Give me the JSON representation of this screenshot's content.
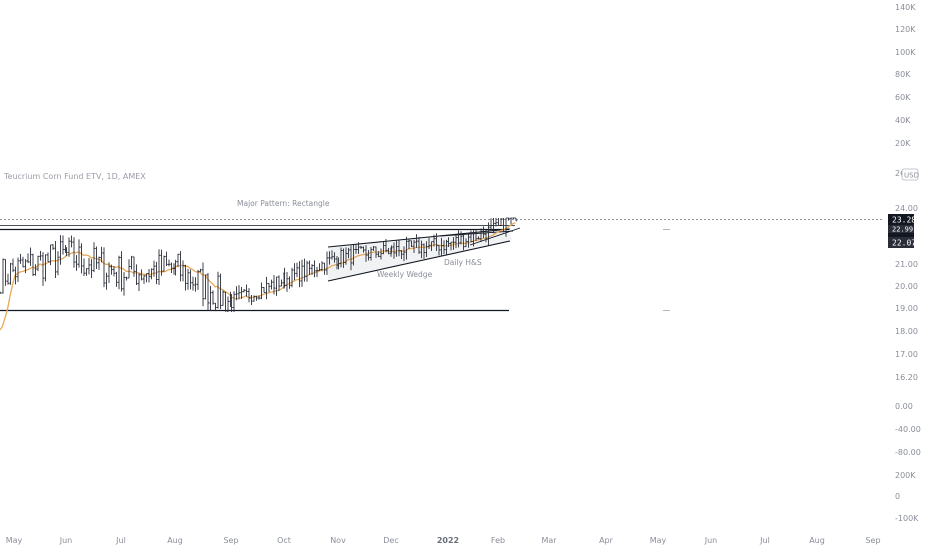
{
  "header": {
    "symbol_title": "Teucrium Corn Fund ETV, 1D, AMEX"
  },
  "currency_badge": "USD",
  "annotations": {
    "rectangle_label": "Major Pattern: Rectangle",
    "wedge_label": "Weekly Wedge",
    "hs_label": "Daily H&S"
  },
  "price_tags": {
    "last": "23.28",
    "stacked_a": "22.99",
    "stacked_b": "22.72",
    "ma": "22.07"
  },
  "colors": {
    "candle": "#2a2e39",
    "moving_average": "#e8a85a",
    "last_tag_bg": "#131722",
    "ma_tag_bg": "#2a2e39",
    "axis_text": "#8a8e99"
  },
  "right_axis": {
    "volume_scale": [
      "140K",
      "120K",
      "100K",
      "80K",
      "60K",
      "40K",
      "20K"
    ],
    "price_scale": [
      "26",
      "24.00",
      "21.00",
      "20.00",
      "19.00",
      "18.00",
      "17.00",
      "16.20",
      "0.00",
      "-40.00",
      "-80.00",
      "200K",
      "0",
      "-100K"
    ]
  },
  "chart_data": {
    "type": "bar",
    "title": "Teucrium Corn Fund ETV, 1D, AMEX",
    "x_axis_labels": [
      "May",
      "Jun",
      "Jul",
      "Aug",
      "Sep",
      "Oct",
      "Nov",
      "Dec",
      "2022",
      "Feb",
      "Mar",
      "Apr",
      "May",
      "Jun",
      "Jul",
      "Aug",
      "Sep"
    ],
    "ylim": [
      16.2,
      26
    ],
    "last_price": 23.28,
    "moving_average_last": 22.07,
    "patterns": {
      "rectangle": {
        "label": "Major Pattern: Rectangle",
        "top": 22.75,
        "bottom": 18.9
      },
      "weekly_wedge": {
        "label": "Weekly Wedge"
      },
      "daily_hs": {
        "label": "Daily H&S"
      }
    },
    "segments": [
      {
        "from": "May",
        "to": "Jun",
        "start": 20.5,
        "end": 21.4
      },
      {
        "from": "Jun",
        "to": "Jul",
        "start": 21.4,
        "end": 20.6
      },
      {
        "from": "Jul",
        "to": "Aug",
        "start": 20.6,
        "end": 20.8
      },
      {
        "from": "Aug",
        "to": "Sep",
        "start": 20.8,
        "end": 19.3
      },
      {
        "from": "Sep",
        "to": "Oct",
        "start": 19.3,
        "end": 20.3
      },
      {
        "from": "Oct",
        "to": "Nov",
        "start": 20.3,
        "end": 21.3
      },
      {
        "from": "Nov",
        "to": "Dec",
        "start": 21.3,
        "end": 21.6
      },
      {
        "from": "Dec",
        "to": "2022",
        "start": 21.6,
        "end": 21.9
      },
      {
        "from": "2022",
        "to": "Feb",
        "start": 21.9,
        "end": 22.6
      },
      {
        "from": "Feb",
        "to": "Feb",
        "start": 22.6,
        "end": 23.28
      }
    ]
  }
}
